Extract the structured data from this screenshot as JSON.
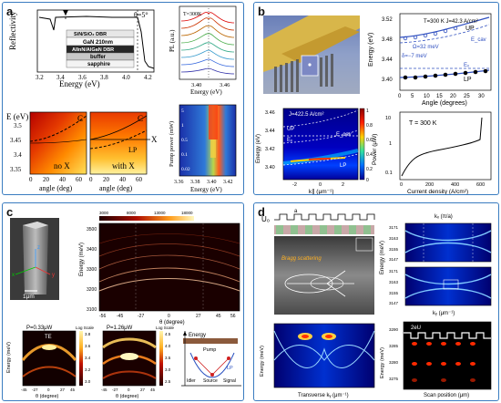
{
  "labels": {
    "a": "a",
    "b": "b",
    "c": "c",
    "d": "d"
  },
  "a": {
    "refl": {
      "ylabel": "Reflectivity",
      "xlabel": "Energy (eV)",
      "angle": "θ=5°",
      "xticks": [
        "3.2",
        "3.4",
        "3.6",
        "3.8",
        "4.0",
        "4.2"
      ],
      "stack": [
        "SiN/SiO₂ DBR",
        "GaN 210nm",
        "AlInN/AlGaN DBR",
        "buffer",
        "sapphire"
      ]
    },
    "pl": {
      "ylabel": "PL (a.u.)",
      "xlabel": "Energy (eV)",
      "temp": "T=300K",
      "xticks": [
        "3.40",
        "3.46"
      ]
    },
    "disp": {
      "ylabel": "E\n(eV)",
      "xlabel": "angle (deg)",
      "yticks": [
        "3.5",
        "3.45",
        "3.4",
        "3.35"
      ],
      "xticks": [
        "0",
        "20",
        "40",
        "60"
      ],
      "noX": "no X",
      "withX": "with X",
      "C": "C",
      "X": "X",
      "LP": "LP"
    },
    "pump": {
      "ylabel": "Pump power (mW)",
      "xlabel": "Energy (eV)",
      "xticks": [
        "3.36",
        "3.38",
        "3.40",
        "3.42"
      ],
      "yticks": [
        "5",
        "1",
        "0.5",
        "0.1",
        "0.02"
      ]
    }
  },
  "b": {
    "top": {
      "conditions": "T=300 K\nJ=42.3 A/cm²",
      "omega": "Ω=32 meV",
      "delta": "δ=−7 meV",
      "UP": "UP",
      "LP": "LP",
      "Ex": "Eₓ",
      "Ecav": "E_cav",
      "ylabel": "Energy (eV)",
      "xlabel": "Angle (degrees)",
      "yticks": [
        "3.52",
        "3.48",
        "3.44",
        "3.40"
      ],
      "xticks": [
        "0",
        "5",
        "10",
        "15",
        "20",
        "25",
        "30"
      ]
    },
    "map": {
      "J": "J=422.5 A/cm²",
      "UP": "UP",
      "LP": "LP",
      "Ex": "Eₓ",
      "Ecav": "E_cav",
      "ylabel": "Energy (eV)",
      "xlabel": "k∥ (μm⁻¹)",
      "yticks": [
        "3.46",
        "3.44",
        "3.42",
        "3.40"
      ],
      "xticks": [
        "-2",
        "0",
        "2"
      ],
      "cbar": [
        "1",
        "0.8",
        "0.6",
        "0.4",
        "0.2",
        "0"
      ]
    },
    "power": {
      "T": "T = 300 K",
      "ylabel": "Power (μW)",
      "xlabel": "Current density (A/cm²)",
      "yticks": [
        "10",
        "1",
        "0.1"
      ],
      "xticks": [
        "0",
        "200",
        "400",
        "600"
      ]
    }
  },
  "c": {
    "scale": "1μm",
    "x": "x",
    "y": "y",
    "z": "z",
    "main": {
      "ylabel": "Energy (meV)",
      "xlabel": "θ (degree)",
      "xticks": [
        "-56",
        "-45",
        "-27",
        "0",
        "27",
        "45",
        "56"
      ],
      "cticks": [
        "3000",
        "8000",
        "13000",
        "18000"
      ],
      "yticks": [
        "3500",
        "3400",
        "3300",
        "3200",
        "3100"
      ]
    },
    "low": {
      "title": "P=0.33μW",
      "mode": "TE",
      "scale": "Log Scale",
      "ylabel": "Energy (meV)",
      "xlabel": "θ (degree)",
      "xticks": [
        "-45",
        "-27",
        "0",
        "27",
        "45"
      ],
      "cticks": [
        "3.8",
        "3.6",
        "3.4",
        "3.2",
        "3.0"
      ]
    },
    "high": {
      "title": "P=1.26μW",
      "scale": "Log Scale",
      "xlabel": "θ (degree)",
      "xticks": [
        "-45",
        "-27",
        "0",
        "27",
        "45"
      ],
      "cticks": [
        "4.5",
        "4.0",
        "3.5",
        "3.0",
        "2.5"
      ]
    },
    "schem": {
      "energy": "Energy",
      "pump": "Pump",
      "lp": "LP",
      "idler": "Idler",
      "source": "Source",
      "signal": "Signal"
    }
  },
  "d": {
    "U": "U₀",
    "a": "a",
    "q": "Bragg scattering",
    "kx_top": "kₓ (π/a)",
    "kx_bot": "kᵧ (μm⁻¹)",
    "tl_xlabel": "Transverse kᵧ (μm⁻¹)",
    "tl_ylabel": "Energy (meV)",
    "tr_ylabel": "Energy (meV)",
    "tr_ticks": [
      "3171",
      "3163",
      "3155",
      "3147",
      "3171",
      "3163",
      "3155",
      "3147"
    ],
    "br_ylabel": "Energy (meV)",
    "br_xlabel": "Scan position (μm)",
    "bu": "2eU",
    "br_yticks": [
      "3290",
      "3285",
      "3280",
      "3275"
    ]
  }
}
